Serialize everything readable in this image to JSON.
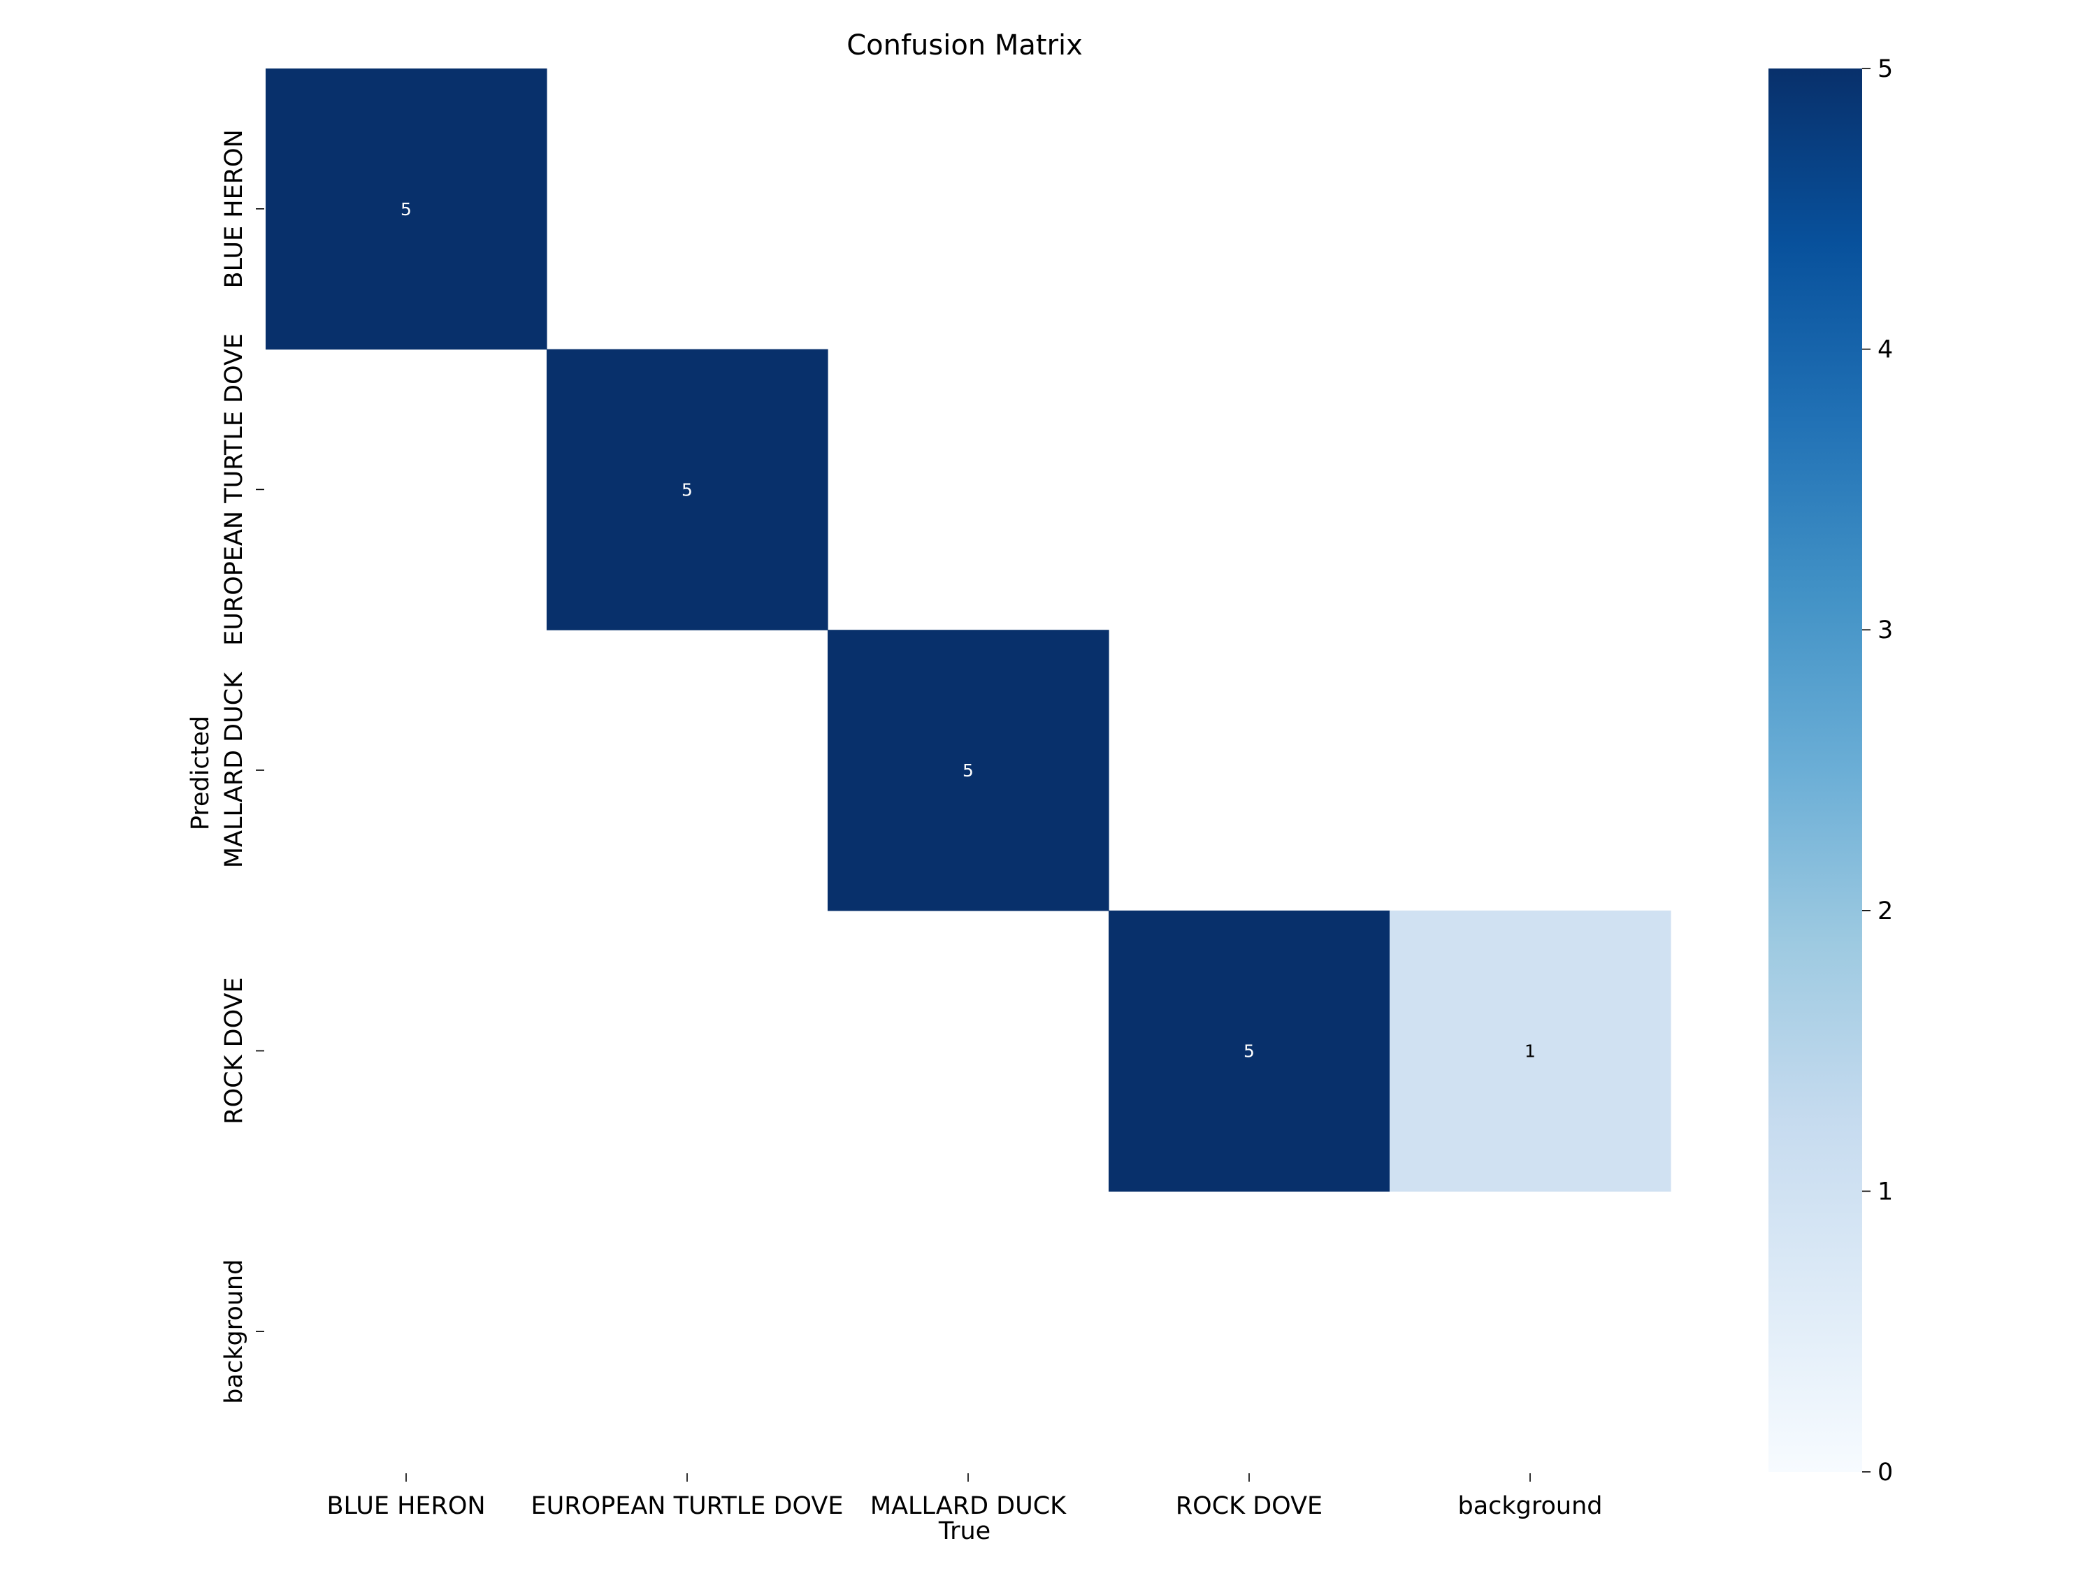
{
  "chart_data": {
    "type": "heatmap",
    "title": "Confusion Matrix",
    "xlabel": "True",
    "ylabel": "Predicted",
    "x_categories": [
      "BLUE HERON",
      "EUROPEAN TURTLE DOVE",
      "MALLARD DUCK",
      "ROCK DOVE",
      "background"
    ],
    "y_categories": [
      "BLUE HERON",
      "EUROPEAN TURTLE DOVE",
      "MALLARD DUCK",
      "ROCK DOVE",
      "background"
    ],
    "matrix": [
      [
        5,
        0,
        0,
        0,
        0
      ],
      [
        0,
        5,
        0,
        0,
        0
      ],
      [
        0,
        0,
        5,
        0,
        0
      ],
      [
        0,
        0,
        0,
        5,
        1
      ],
      [
        0,
        0,
        0,
        0,
        0
      ]
    ],
    "zero_cells_shown": false,
    "colorbar": {
      "min": 0,
      "max": 5,
      "ticks": [
        0,
        1,
        2,
        3,
        4,
        5
      ],
      "colormap": "Blues",
      "low_color": "#f7fbff",
      "high_color": "#08306b"
    },
    "grid": false,
    "legend": "none"
  }
}
